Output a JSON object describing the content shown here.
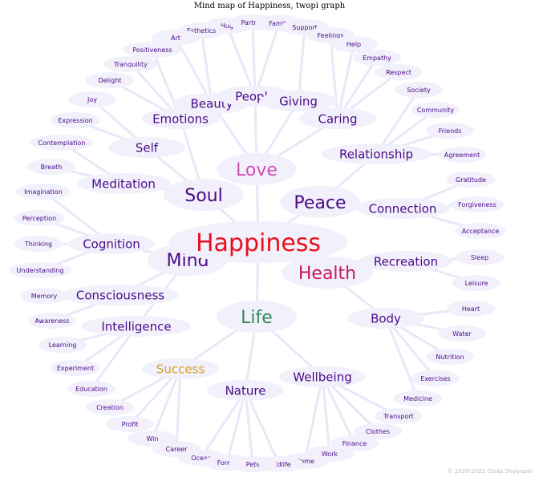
{
  "title": "Mind map of Happiness, twopi graph",
  "credit": "© 2020-2022 Costa Shulyupin",
  "colors": {
    "edge": "#e8e8f8",
    "node_fill": "#f1f0fb",
    "text_default": "#4b0a87",
    "root": "#e8101c",
    "love": "#d050b4",
    "health": "#c8195c",
    "life": "#2e8b57",
    "success": "#d4a020"
  },
  "nodes": [
    {
      "id": "happiness",
      "label": "Happiness",
      "role": "root"
    },
    {
      "id": "love",
      "label": "Love",
      "role": "hub",
      "color": "love"
    },
    {
      "id": "peace",
      "label": "Peace",
      "role": "hub"
    },
    {
      "id": "soul",
      "label": "Soul",
      "role": "hub"
    },
    {
      "id": "mind",
      "label": "Mind",
      "role": "hub"
    },
    {
      "id": "health",
      "label": "Health",
      "role": "hub",
      "color": "health"
    },
    {
      "id": "life",
      "label": "Life",
      "role": "hub",
      "color": "life"
    },
    {
      "id": "beauty",
      "label": "Beauty",
      "role": "mid"
    },
    {
      "id": "people",
      "label": "People",
      "role": "mid"
    },
    {
      "id": "giving",
      "label": "Giving",
      "role": "mid"
    },
    {
      "id": "caring",
      "label": "Caring",
      "role": "mid"
    },
    {
      "id": "emotions",
      "label": "Emotions",
      "role": "mid"
    },
    {
      "id": "self",
      "label": "Self",
      "role": "mid"
    },
    {
      "id": "relationship",
      "label": "Relationship",
      "role": "mid"
    },
    {
      "id": "meditation",
      "label": "Meditation",
      "role": "mid"
    },
    {
      "id": "connection",
      "label": "Connection",
      "role": "mid"
    },
    {
      "id": "cognition",
      "label": "Cognition",
      "role": "mid"
    },
    {
      "id": "recreation",
      "label": "Recreation",
      "role": "mid"
    },
    {
      "id": "consciousness",
      "label": "Consciousness",
      "role": "mid"
    },
    {
      "id": "intelligence",
      "label": "Intelligence",
      "role": "mid"
    },
    {
      "id": "body",
      "label": "Body",
      "role": "mid"
    },
    {
      "id": "success",
      "label": "Success",
      "role": "mid",
      "color": "success"
    },
    {
      "id": "wellbeing",
      "label": "Wellbeing",
      "role": "mid"
    },
    {
      "id": "nature",
      "label": "Nature",
      "role": "mid"
    },
    {
      "id": "hug",
      "label": "Hug",
      "role": "leaf"
    },
    {
      "id": "partner",
      "label": "Partner",
      "role": "leaf"
    },
    {
      "id": "family",
      "label": "Family",
      "role": "leaf"
    },
    {
      "id": "support",
      "label": "Support",
      "role": "leaf"
    },
    {
      "id": "esthetics",
      "label": "Esthetics",
      "role": "leaf"
    },
    {
      "id": "feelings",
      "label": "Feelings",
      "role": "leaf"
    },
    {
      "id": "art",
      "label": "Art",
      "role": "leaf"
    },
    {
      "id": "help",
      "label": "Help",
      "role": "leaf"
    },
    {
      "id": "positiveness",
      "label": "Positiveness",
      "role": "leaf"
    },
    {
      "id": "empathy",
      "label": "Empathy",
      "role": "leaf"
    },
    {
      "id": "tranquility",
      "label": "Tranquility",
      "role": "leaf"
    },
    {
      "id": "respect",
      "label": "Respect",
      "role": "leaf"
    },
    {
      "id": "delight",
      "label": "Delight",
      "role": "leaf"
    },
    {
      "id": "society",
      "label": "Society",
      "role": "leaf"
    },
    {
      "id": "joy",
      "label": "Joy",
      "role": "leaf"
    },
    {
      "id": "community",
      "label": "Community",
      "role": "leaf"
    },
    {
      "id": "expression",
      "label": "Expression",
      "role": "leaf"
    },
    {
      "id": "friends",
      "label": "Friends",
      "role": "leaf"
    },
    {
      "id": "contemplation",
      "label": "Contemplation",
      "role": "leaf"
    },
    {
      "id": "agreement",
      "label": "Agreement",
      "role": "leaf"
    },
    {
      "id": "breath",
      "label": "Breath",
      "role": "leaf"
    },
    {
      "id": "gratitude",
      "label": "Gratitude",
      "role": "leaf"
    },
    {
      "id": "imagination",
      "label": "Imagination",
      "role": "leaf"
    },
    {
      "id": "forgiveness",
      "label": "Forgiveness",
      "role": "leaf"
    },
    {
      "id": "perception",
      "label": "Perception",
      "role": "leaf"
    },
    {
      "id": "acceptance",
      "label": "Acceptance",
      "role": "leaf"
    },
    {
      "id": "thinking",
      "label": "Thinking",
      "role": "leaf"
    },
    {
      "id": "sleep",
      "label": "Sleep",
      "role": "leaf"
    },
    {
      "id": "understanding",
      "label": "Understanding",
      "role": "leaf"
    },
    {
      "id": "leisure",
      "label": "Leisure",
      "role": "leaf"
    },
    {
      "id": "memory",
      "label": "Memory",
      "role": "leaf"
    },
    {
      "id": "heart",
      "label": "Heart",
      "role": "leaf"
    },
    {
      "id": "awareness",
      "label": "Awareness",
      "role": "leaf"
    },
    {
      "id": "water",
      "label": "Water",
      "role": "leaf"
    },
    {
      "id": "learning",
      "label": "Learning",
      "role": "leaf"
    },
    {
      "id": "nutrition",
      "label": "Nutrition",
      "role": "leaf"
    },
    {
      "id": "experiment",
      "label": "Experiment",
      "role": "leaf"
    },
    {
      "id": "exercises",
      "label": "Exercises",
      "role": "leaf"
    },
    {
      "id": "education",
      "label": "Education",
      "role": "leaf"
    },
    {
      "id": "medicine",
      "label": "Medicine",
      "role": "leaf"
    },
    {
      "id": "creation",
      "label": "Creation",
      "role": "leaf"
    },
    {
      "id": "transport",
      "label": "Transport",
      "role": "leaf"
    },
    {
      "id": "profit",
      "label": "Profit",
      "role": "leaf"
    },
    {
      "id": "clothes",
      "label": "Clothes",
      "role": "leaf"
    },
    {
      "id": "win",
      "label": "Win",
      "role": "leaf"
    },
    {
      "id": "finance",
      "label": "Finance",
      "role": "leaf"
    },
    {
      "id": "career",
      "label": "Career",
      "role": "leaf"
    },
    {
      "id": "work",
      "label": "Work",
      "role": "leaf"
    },
    {
      "id": "ocean",
      "label": "Ocean",
      "role": "leaf"
    },
    {
      "id": "home",
      "label": "Home",
      "role": "leaf"
    },
    {
      "id": "forest",
      "label": "Forest",
      "role": "leaf"
    },
    {
      "id": "wildlife",
      "label": "Wildlife",
      "role": "leaf"
    },
    {
      "id": "pets",
      "label": "Pets",
      "role": "leaf"
    }
  ],
  "edges": [
    [
      "happiness",
      "love"
    ],
    [
      "happiness",
      "peace"
    ],
    [
      "happiness",
      "soul"
    ],
    [
      "happiness",
      "mind"
    ],
    [
      "happiness",
      "health"
    ],
    [
      "happiness",
      "life"
    ],
    [
      "love",
      "beauty"
    ],
    [
      "love",
      "people"
    ],
    [
      "love",
      "giving"
    ],
    [
      "love",
      "caring"
    ],
    [
      "beauty",
      "esthetics"
    ],
    [
      "beauty",
      "art"
    ],
    [
      "people",
      "hug"
    ],
    [
      "people",
      "partner"
    ],
    [
      "people",
      "family"
    ],
    [
      "giving",
      "support"
    ],
    [
      "caring",
      "feelings"
    ],
    [
      "caring",
      "help"
    ],
    [
      "caring",
      "empathy"
    ],
    [
      "caring",
      "respect"
    ],
    [
      "peace",
      "relationship"
    ],
    [
      "peace",
      "connection"
    ],
    [
      "relationship",
      "society"
    ],
    [
      "relationship",
      "community"
    ],
    [
      "relationship",
      "friends"
    ],
    [
      "relationship",
      "agreement"
    ],
    [
      "connection",
      "gratitude"
    ],
    [
      "connection",
      "forgiveness"
    ],
    [
      "connection",
      "acceptance"
    ],
    [
      "soul",
      "emotions"
    ],
    [
      "soul",
      "self"
    ],
    [
      "soul",
      "meditation"
    ],
    [
      "emotions",
      "positiveness"
    ],
    [
      "emotions",
      "tranquility"
    ],
    [
      "emotions",
      "delight"
    ],
    [
      "self",
      "joy"
    ],
    [
      "self",
      "expression"
    ],
    [
      "meditation",
      "contemplation"
    ],
    [
      "meditation",
      "breath"
    ],
    [
      "mind",
      "cognition"
    ],
    [
      "mind",
      "consciousness"
    ],
    [
      "mind",
      "intelligence"
    ],
    [
      "cognition",
      "imagination"
    ],
    [
      "cognition",
      "perception"
    ],
    [
      "cognition",
      "thinking"
    ],
    [
      "cognition",
      "understanding"
    ],
    [
      "consciousness",
      "memory"
    ],
    [
      "consciousness",
      "awareness"
    ],
    [
      "intelligence",
      "learning"
    ],
    [
      "intelligence",
      "experiment"
    ],
    [
      "intelligence",
      "education"
    ],
    [
      "health",
      "recreation"
    ],
    [
      "health",
      "body"
    ],
    [
      "recreation",
      "sleep"
    ],
    [
      "recreation",
      "leisure"
    ],
    [
      "body",
      "heart"
    ],
    [
      "body",
      "water"
    ],
    [
      "body",
      "nutrition"
    ],
    [
      "body",
      "exercises"
    ],
    [
      "body",
      "medicine"
    ],
    [
      "life",
      "success"
    ],
    [
      "life",
      "wellbeing"
    ],
    [
      "life",
      "nature"
    ],
    [
      "success",
      "creation"
    ],
    [
      "success",
      "profit"
    ],
    [
      "success",
      "win"
    ],
    [
      "success",
      "career"
    ],
    [
      "wellbeing",
      "transport"
    ],
    [
      "wellbeing",
      "clothes"
    ],
    [
      "wellbeing",
      "finance"
    ],
    [
      "wellbeing",
      "work"
    ],
    [
      "wellbeing",
      "home"
    ],
    [
      "nature",
      "ocean"
    ],
    [
      "nature",
      "forest"
    ],
    [
      "nature",
      "pets"
    ],
    [
      "nature",
      "wildlife"
    ]
  ]
}
